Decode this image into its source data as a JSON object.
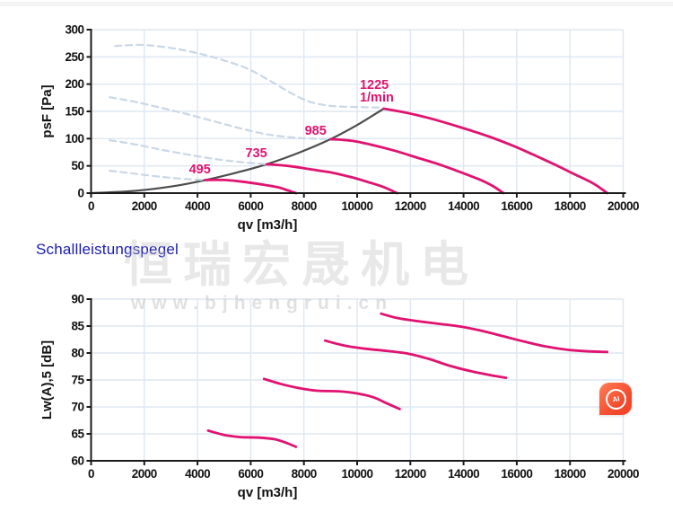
{
  "section_title": "Schallleistungspegel",
  "watermark": {
    "cn": "恒瑞宏晟机电",
    "url": "www.bjhengrui.cn"
  },
  "ai_badge": {
    "label": "AI"
  },
  "colors": {
    "curve_pink": "#e01370",
    "system_gray": "#4d4d4d",
    "dashed_blue": "#c9d7e6",
    "grid": "#dde7f2",
    "axis": "#1a1a1a",
    "tick_text": "#111111",
    "title_blue": "#1a1cae"
  },
  "chart_data": [
    {
      "type": "line",
      "title": "",
      "xlabel": "qv [m3/h]",
      "ylabel": "psF [Pa]",
      "xlim": [
        0,
        20000
      ],
      "ylim": [
        0,
        300
      ],
      "xtick_step": 2000,
      "ytick_step": 50,
      "grid": true,
      "legend": "none",
      "series": [
        {
          "name": "system-resistance-curve",
          "style": "solid",
          "color": "#4d4d4d",
          "width": 2.2,
          "points": [
            [
              0,
              0
            ],
            [
              1600,
              4
            ],
            [
              3000,
              12
            ],
            [
              4300,
              24
            ],
            [
              5500,
              38
            ],
            [
              6600,
              53
            ],
            [
              7800,
              74
            ],
            [
              9000,
              99
            ],
            [
              10000,
              125
            ],
            [
              11000,
              155
            ]
          ]
        },
        {
          "name": "fan-curve-495-dashed",
          "style": "dashed",
          "color": "#c9d7e6",
          "width": 2.2,
          "points": [
            [
              700,
              41
            ],
            [
              1600,
              36
            ],
            [
              2600,
              30
            ],
            [
              3500,
              26
            ],
            [
              4300,
              24
            ]
          ]
        },
        {
          "name": "fan-curve-495",
          "style": "solid",
          "color": "#e01370",
          "width": 2.8,
          "points": [
            [
              4300,
              24
            ],
            [
              5000,
              24
            ],
            [
              5700,
              21
            ],
            [
              6400,
              16
            ],
            [
              7000,
              11
            ],
            [
              7400,
              5
            ],
            [
              7700,
              0
            ]
          ]
        },
        {
          "name": "fan-curve-735-dashed",
          "style": "dashed",
          "color": "#c9d7e6",
          "width": 2.2,
          "points": [
            [
              700,
              97
            ],
            [
              1600,
              90
            ],
            [
              2600,
              80
            ],
            [
              3600,
              71
            ],
            [
              4600,
              63
            ],
            [
              5600,
              57
            ],
            [
              6600,
              53
            ]
          ]
        },
        {
          "name": "fan-curve-735",
          "style": "solid",
          "color": "#e01370",
          "width": 2.8,
          "points": [
            [
              6600,
              53
            ],
            [
              7400,
              50
            ],
            [
              8200,
              44
            ],
            [
              9000,
              38
            ],
            [
              9800,
              29
            ],
            [
              10500,
              19
            ],
            [
              11000,
              11
            ],
            [
              11500,
              0
            ]
          ]
        },
        {
          "name": "fan-curve-985-dashed",
          "style": "dashed",
          "color": "#c9d7e6",
          "width": 2.2,
          "points": [
            [
              700,
              176
            ],
            [
              1600,
              168
            ],
            [
              2600,
              157
            ],
            [
              3600,
              145
            ],
            [
              4600,
              132
            ],
            [
              5600,
              119
            ],
            [
              6600,
              108
            ],
            [
              7600,
              102
            ],
            [
              8300,
              100
            ],
            [
              9000,
              99
            ]
          ]
        },
        {
          "name": "fan-curve-985",
          "style": "solid",
          "color": "#e01370",
          "width": 2.8,
          "points": [
            [
              9000,
              99
            ],
            [
              9800,
              96
            ],
            [
              10600,
              88
            ],
            [
              11400,
              78
            ],
            [
              12200,
              66
            ],
            [
              13000,
              54
            ],
            [
              13800,
              40
            ],
            [
              14600,
              25
            ],
            [
              15100,
              13
            ],
            [
              15500,
              0
            ]
          ]
        },
        {
          "name": "fan-curve-1225-dashed",
          "style": "dashed",
          "color": "#c9d7e6",
          "width": 2.2,
          "points": [
            [
              900,
              270
            ],
            [
              1900,
              272
            ],
            [
              2900,
              267
            ],
            [
              3900,
              258
            ],
            [
              4900,
              245
            ],
            [
              5900,
              228
            ],
            [
              6800,
              204
            ],
            [
              7500,
              184
            ],
            [
              8200,
              168
            ],
            [
              9000,
              160
            ],
            [
              10000,
              158
            ],
            [
              10900,
              157
            ]
          ]
        },
        {
          "name": "fan-curve-1225",
          "style": "solid",
          "color": "#e01370",
          "width": 2.8,
          "points": [
            [
              11000,
              155
            ],
            [
              11800,
              148
            ],
            [
              12600,
              139
            ],
            [
              13400,
              128
            ],
            [
              14200,
              116
            ],
            [
              15000,
              103
            ],
            [
              15800,
              88
            ],
            [
              16600,
              71
            ],
            [
              17400,
              53
            ],
            [
              18200,
              34
            ],
            [
              18900,
              17
            ],
            [
              19400,
              0
            ]
          ]
        }
      ],
      "annotations": [
        {
          "text": "495",
          "x": 3680,
          "y": 36,
          "color": "#e01370"
        },
        {
          "text": "735",
          "x": 5800,
          "y": 66,
          "color": "#e01370"
        },
        {
          "text": "985",
          "x": 8030,
          "y": 107,
          "color": "#e01370"
        },
        {
          "text": "1225",
          "x": 10100,
          "y": 191,
          "color": "#e01370"
        },
        {
          "text": "1/min",
          "x": 10100,
          "y": 168,
          "color": "#e01370"
        }
      ]
    },
    {
      "type": "line",
      "title": "Schallleistungspegel",
      "xlabel": "qv [m3/h]",
      "ylabel": "Lw(A),5 [dB]",
      "xlim": [
        0,
        20000
      ],
      "ylim": [
        60,
        90
      ],
      "xtick_step": 2000,
      "ytick_step": 5,
      "grid": true,
      "legend": "none",
      "series": [
        {
          "name": "sound-curve-495",
          "style": "solid",
          "color": "#e01370",
          "width": 2.8,
          "points": [
            [
              4400,
              65.6
            ],
            [
              5000,
              64.8
            ],
            [
              5600,
              64.4
            ],
            [
              6300,
              64.3
            ],
            [
              6900,
              64.0
            ],
            [
              7300,
              63.4
            ],
            [
              7700,
              62.6
            ]
          ]
        },
        {
          "name": "sound-curve-735",
          "style": "solid",
          "color": "#e01370",
          "width": 2.8,
          "points": [
            [
              6500,
              75.2
            ],
            [
              7100,
              74.3
            ],
            [
              7800,
              73.5
            ],
            [
              8500,
              73.0
            ],
            [
              9300,
              72.9
            ],
            [
              10000,
              72.5
            ],
            [
              10600,
              71.8
            ],
            [
              11100,
              70.7
            ],
            [
              11600,
              69.6
            ]
          ]
        },
        {
          "name": "sound-curve-985",
          "style": "solid",
          "color": "#e01370",
          "width": 2.8,
          "points": [
            [
              8800,
              82.3
            ],
            [
              9500,
              81.4
            ],
            [
              10300,
              80.8
            ],
            [
              11100,
              80.4
            ],
            [
              11900,
              79.9
            ],
            [
              12700,
              78.9
            ],
            [
              13500,
              77.6
            ],
            [
              14300,
              76.6
            ],
            [
              15000,
              75.9
            ],
            [
              15600,
              75.4
            ]
          ]
        },
        {
          "name": "sound-curve-1225",
          "style": "solid",
          "color": "#e01370",
          "width": 2.8,
          "points": [
            [
              10900,
              87.3
            ],
            [
              11500,
              86.5
            ],
            [
              12300,
              85.9
            ],
            [
              13100,
              85.4
            ],
            [
              13900,
              84.9
            ],
            [
              14700,
              84.1
            ],
            [
              15500,
              83.1
            ],
            [
              16300,
              82.1
            ],
            [
              17100,
              81.2
            ],
            [
              17900,
              80.6
            ],
            [
              18700,
              80.3
            ],
            [
              19400,
              80.2
            ]
          ]
        }
      ],
      "annotations": []
    }
  ]
}
